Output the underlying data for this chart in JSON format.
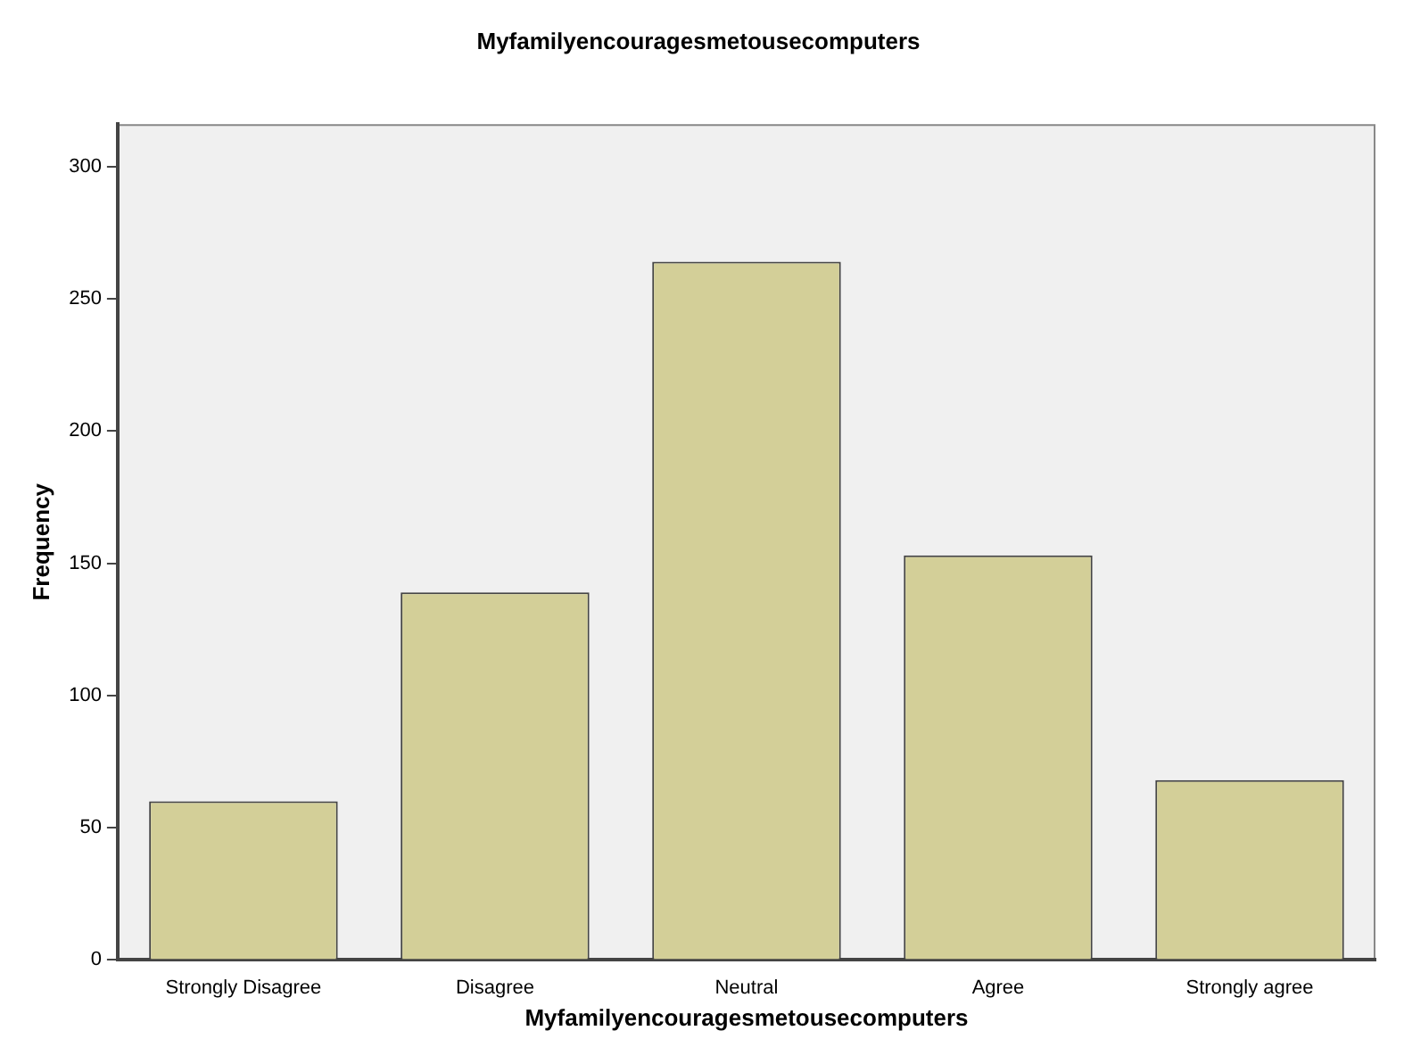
{
  "chart_data": {
    "type": "bar",
    "title": "Myfamilyencouragesmetousecomputers",
    "xlabel": "Myfamilyencouragesmetousecomputers",
    "ylabel": "Frequency",
    "categories": [
      "Strongly Disagree",
      "Disagree",
      "Neutral",
      "Agree",
      "Strongly agree"
    ],
    "values": [
      60,
      139,
      264,
      153,
      68
    ],
    "color": "#d3cf98",
    "ylim": [
      0,
      316
    ],
    "yticks": [
      0,
      50,
      100,
      150,
      200,
      250,
      300
    ],
    "grid": false,
    "legend": false
  }
}
